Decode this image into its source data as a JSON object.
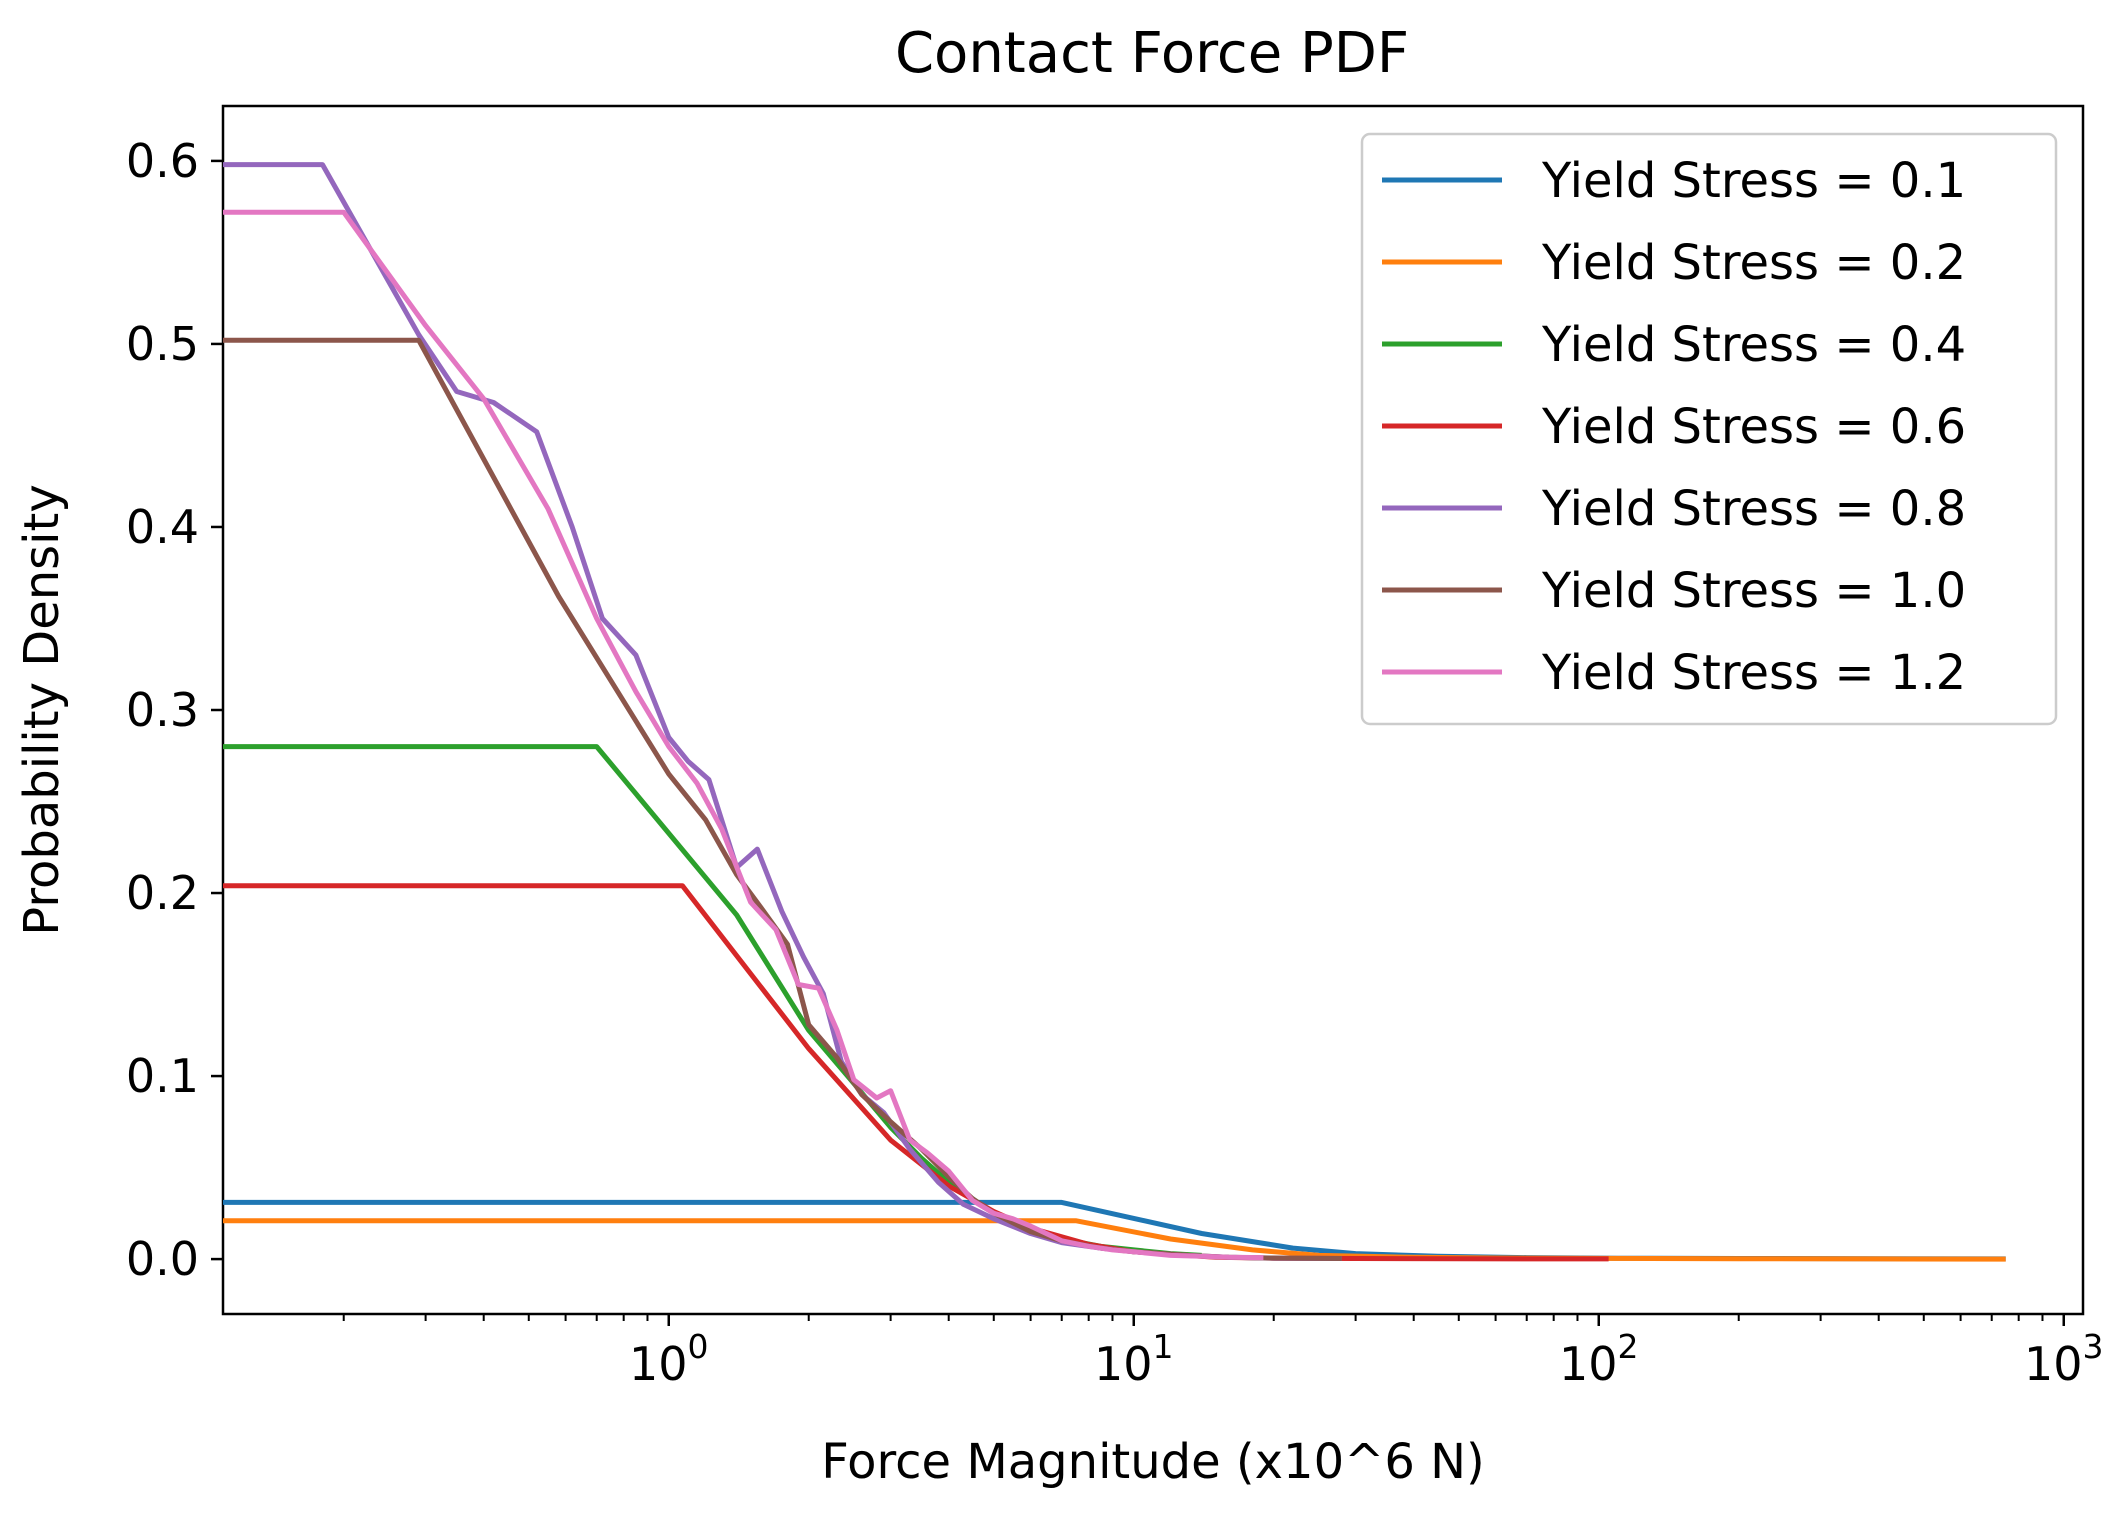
{
  "chart_data": {
    "type": "line",
    "title": "Contact Force PDF",
    "xlabel": "Force Magnitude (x10^6 N)",
    "ylabel": "Probability Density",
    "xscale": "log",
    "xlim": [
      0.11,
      1100
    ],
    "ylim": [
      -0.03,
      0.63
    ],
    "x_tick_labels": [
      {
        "value": 1,
        "base": "10",
        "exp": "0"
      },
      {
        "value": 10,
        "base": "10",
        "exp": "1"
      },
      {
        "value": 100,
        "base": "10",
        "exp": "2"
      },
      {
        "value": 1000,
        "base": "10",
        "exp": "3"
      }
    ],
    "y_ticks": [
      0.0,
      0.1,
      0.2,
      0.3,
      0.4,
      0.5,
      0.6
    ],
    "y_tick_labels": [
      "0.0",
      "0.1",
      "0.2",
      "0.3",
      "0.4",
      "0.5",
      "0.6"
    ],
    "legend_position": "top-right",
    "grid": false,
    "series": [
      {
        "name": "Yield Stress = 0.1",
        "color": "#1f77b4",
        "x": [
          0.11,
          7,
          14,
          22,
          30,
          45,
          70,
          110,
          200,
          400,
          750
        ],
        "y": [
          0.031,
          0.031,
          0.014,
          0.006,
          0.003,
          0.0015,
          0.0008,
          0.0005,
          0.0003,
          0.0002,
          0.0001
        ]
      },
      {
        "name": "Yield Stress = 0.2",
        "color": "#ff7f0e",
        "x": [
          0.11,
          7.5,
          12,
          18,
          25,
          40,
          60,
          100,
          200,
          400,
          750
        ],
        "y": [
          0.021,
          0.021,
          0.011,
          0.005,
          0.002,
          0.001,
          0.0006,
          0.0004,
          0.0002,
          0.0001,
          0.0
        ]
      },
      {
        "name": "Yield Stress = 0.4",
        "color": "#2ca02c",
        "x": [
          0.11,
          0.7,
          1.4,
          2.0,
          2.5,
          3.0,
          3.5,
          4.0,
          4.5,
          5.0,
          6.0,
          7.0,
          8.5,
          10,
          12,
          14
        ],
        "y": [
          0.28,
          0.28,
          0.188,
          0.125,
          0.096,
          0.072,
          0.055,
          0.042,
          0.033,
          0.025,
          0.016,
          0.011,
          0.007,
          0.005,
          0.003,
          0.002
        ]
      },
      {
        "name": "Yield Stress = 0.6",
        "color": "#d62728",
        "x": [
          0.11,
          1.07,
          2.0,
          3.0,
          4.0,
          5.0,
          6.0,
          8.0,
          10,
          15,
          20,
          30,
          50,
          80,
          105
        ],
        "y": [
          0.204,
          0.204,
          0.115,
          0.065,
          0.04,
          0.026,
          0.017,
          0.008,
          0.004,
          0.001,
          0.0005,
          0.0003,
          0.0002,
          0.0001,
          0.0001
        ]
      },
      {
        "name": "Yield Stress = 0.8",
        "color": "#9467bd",
        "x": [
          0.11,
          0.18,
          0.29,
          0.35,
          0.42,
          0.52,
          0.62,
          0.72,
          0.85,
          1.0,
          1.1,
          1.22,
          1.4,
          1.55,
          1.75,
          1.95,
          2.15,
          2.35,
          2.6,
          2.9,
          3.3,
          3.8,
          4.3,
          5.0,
          6.0,
          7.0,
          8.5,
          10,
          13,
          16,
          20,
          28
        ],
        "y": [
          0.598,
          0.598,
          0.505,
          0.474,
          0.468,
          0.452,
          0.4,
          0.35,
          0.33,
          0.285,
          0.272,
          0.262,
          0.214,
          0.224,
          0.19,
          0.165,
          0.145,
          0.108,
          0.09,
          0.08,
          0.06,
          0.042,
          0.03,
          0.022,
          0.014,
          0.009,
          0.006,
          0.004,
          0.002,
          0.001,
          0.0005,
          0.0003
        ]
      },
      {
        "name": "Yield Stress = 1.0",
        "color": "#8c564b",
        "x": [
          0.11,
          0.29,
          0.58,
          1.0,
          1.2,
          1.4,
          1.6,
          1.8,
          2.0,
          2.3,
          2.6,
          3.0,
          3.5,
          4.0,
          4.5,
          5.0,
          6.0,
          7.0,
          8.5,
          10,
          13,
          16,
          20,
          28
        ],
        "y": [
          0.502,
          0.502,
          0.362,
          0.265,
          0.24,
          0.21,
          0.19,
          0.172,
          0.128,
          0.11,
          0.09,
          0.075,
          0.06,
          0.045,
          0.033,
          0.025,
          0.015,
          0.01,
          0.006,
          0.004,
          0.002,
          0.001,
          0.0006,
          0.0003
        ]
      },
      {
        "name": "Yield Stress = 1.2",
        "color": "#e377c2",
        "x": [
          0.11,
          0.2,
          0.3,
          0.4,
          0.55,
          0.7,
          0.85,
          1.0,
          1.15,
          1.3,
          1.5,
          1.7,
          1.9,
          2.1,
          2.3,
          2.5,
          2.8,
          3.0,
          3.3,
          3.6,
          4.0,
          4.5,
          5.0,
          5.5,
          6.0,
          7.0,
          8.0,
          9.0,
          10,
          12,
          14,
          16,
          19
        ],
        "y": [
          0.572,
          0.572,
          0.51,
          0.47,
          0.41,
          0.35,
          0.31,
          0.28,
          0.26,
          0.235,
          0.195,
          0.18,
          0.15,
          0.148,
          0.125,
          0.098,
          0.088,
          0.092,
          0.065,
          0.058,
          0.048,
          0.032,
          0.025,
          0.022,
          0.018,
          0.01,
          0.007,
          0.005,
          0.004,
          0.002,
          0.0015,
          0.001,
          0.0008
        ]
      }
    ]
  }
}
